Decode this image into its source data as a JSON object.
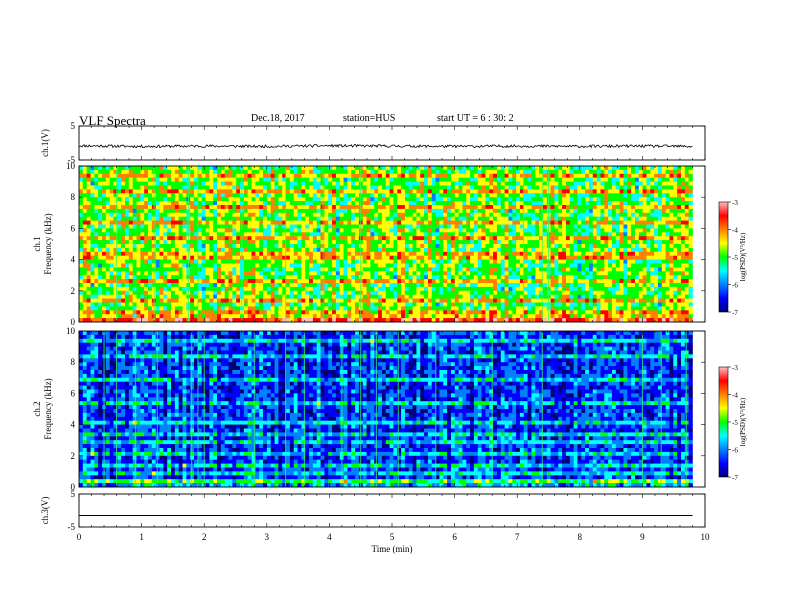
{
  "header": {
    "title": "VLF Spectra",
    "date": "Dec.18, 2017",
    "station": "station=HUS",
    "start": "start  UT =   6 : 30: 2"
  },
  "colors": {
    "background": "#000000",
    "text": "#000000",
    "colormap": [
      "#00007a",
      "#0000ff",
      "#0080ff",
      "#00ffff",
      "#00ff00",
      "#ffff00",
      "#ff8000",
      "#ff0000",
      "#ffc0c0"
    ]
  },
  "chart_data": [
    {
      "type": "line",
      "ylabel": "ch.1(V)",
      "ylim": [
        -5,
        5
      ],
      "yticks": [
        "5",
        "-5"
      ],
      "x": [
        0,
        1,
        2,
        3,
        4,
        5,
        6,
        7,
        8,
        9,
        9.8
      ],
      "values": [
        -0.8,
        -1.0,
        -0.9,
        -1.0,
        -0.8,
        -0.9,
        -1.0,
        -0.9,
        -1.0,
        -0.9,
        -1.0
      ]
    },
    {
      "type": "heatmap",
      "ylabel": "ch.1\nFrequency (kHz)",
      "ylim": [
        0,
        10
      ],
      "yticks": [
        "0",
        "2",
        "4",
        "6",
        "8",
        "10"
      ],
      "colorbar": {
        "label": "log(PSD)(V²/Hz)",
        "range": [
          -7,
          -3
        ],
        "ticks": [
          "-3",
          "-4",
          "-5",
          "-6",
          "-7"
        ]
      },
      "x_end": 9.8,
      "level": 0.52,
      "bands_khz": [
        0.2,
        0.6,
        1.5,
        2.7,
        4.1,
        4.5,
        5.5,
        6.4,
        7.4,
        8.4,
        9.4
      ],
      "spikes_min": [
        0.6,
        1.2,
        1.75,
        1.9,
        2.6,
        3.3,
        3.9,
        4.5,
        7.1,
        7.4,
        7.5
      ]
    },
    {
      "type": "heatmap",
      "ylabel": "ch.2\nFrequency (kHz)",
      "ylim": [
        0,
        10
      ],
      "yticks": [
        "0",
        "2",
        "4",
        "6",
        "8",
        "10"
      ],
      "colorbar": {
        "label": "log(PSD)(V²/Hz)",
        "range": [
          -7,
          -3
        ],
        "ticks": [
          "-3",
          "-4",
          "-5",
          "-6",
          "-7"
        ]
      },
      "x_end": 9.8,
      "level": 0.2,
      "bands_khz": [
        0.3,
        1.0,
        1.5,
        2.2,
        2.8,
        3.5,
        4.2,
        5.5,
        6.9,
        8.3,
        9.4
      ],
      "spikes_min": [
        0.4,
        0.6,
        0.9,
        1.25,
        1.8,
        1.9,
        2.0,
        2.8,
        3.3,
        3.6,
        4.2,
        4.5,
        4.75,
        5.1,
        5.7,
        6.6,
        7.4,
        9.0,
        9.3,
        9.7
      ]
    },
    {
      "type": "line",
      "ylabel": "ch.3(V)",
      "ylim": [
        -5,
        5
      ],
      "yticks": [
        "5",
        "-5"
      ],
      "x": [
        0,
        9.8
      ],
      "values": [
        -1.5,
        -1.5
      ]
    }
  ],
  "xaxis": {
    "label": "Time (min)",
    "ticks": [
      "0",
      "1",
      "2",
      "3",
      "4",
      "5",
      "6",
      "7",
      "8",
      "9",
      "10"
    ],
    "range": [
      0,
      10
    ]
  }
}
